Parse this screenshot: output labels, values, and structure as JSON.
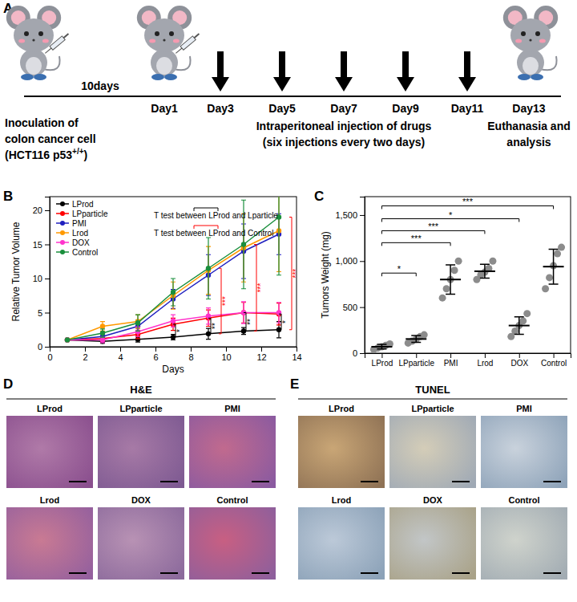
{
  "panel_labels": [
    "A",
    "B",
    "C",
    "D",
    "E"
  ],
  "timeline": {
    "start_label": [
      "Inoculation of",
      "colon cancer cell"
    ],
    "start_sub": {
      "text": "(HCT116 p53",
      "sup": "+/+",
      "tail": ")"
    },
    "interval_label": "10days",
    "days": [
      "Day1",
      "Day3",
      "Day5",
      "Day7",
      "Day9",
      "Day11",
      "Day13"
    ],
    "injection_label": [
      "Intraperitoneal injection of drugs",
      "(six injections every two days)"
    ],
    "end_label": [
      "Euthanasia and",
      "analysis"
    ]
  },
  "chart_data": [
    {
      "type": "line",
      "x": [
        1,
        3,
        5,
        7,
        9,
        11,
        13
      ],
      "xlim": [
        0,
        14
      ],
      "xticks": [
        0,
        2,
        4,
        6,
        8,
        10,
        12,
        14
      ],
      "ylim": [
        0,
        22
      ],
      "yticks": [
        0,
        5,
        10,
        15,
        20
      ],
      "x_label": "Days",
      "y_label": "Relative Tumor Volume",
      "legend": "upper left",
      "marker": "circle",
      "series": [
        {
          "name": "LProd",
          "color": "#000000",
          "values": [
            1,
            0.8,
            1.1,
            1.4,
            1.9,
            2.3,
            2.5
          ],
          "errors": [
            0.1,
            0.3,
            0.4,
            0.4,
            0.8,
            0.5,
            1.2
          ]
        },
        {
          "name": "LPparticle",
          "color": "#ff0000",
          "values": [
            1,
            1.2,
            1.8,
            3.3,
            4.2,
            5.0,
            4.8
          ],
          "errors": [
            0.1,
            0.4,
            0.6,
            0.9,
            1.2,
            1.5,
            1.6
          ]
        },
        {
          "name": "PMI",
          "color": "#1f1fbf",
          "values": [
            1,
            1.5,
            3.0,
            7.0,
            10.5,
            14.0,
            16.5
          ],
          "errors": [
            0.1,
            0.5,
            0.9,
            1.4,
            3.0,
            4.0,
            3.0
          ]
        },
        {
          "name": "Lrod",
          "color": "#ff9900",
          "values": [
            1,
            3.0,
            3.7,
            7.5,
            11.2,
            14.5,
            17.0
          ],
          "errors": [
            0.1,
            0.7,
            1.0,
            2.0,
            3.5,
            5.0,
            6.0
          ]
        },
        {
          "name": "DOX",
          "color": "#ff33cc",
          "values": [
            1,
            1.0,
            2.2,
            3.8,
            4.5,
            5.0,
            5.0
          ],
          "errors": [
            0.1,
            0.4,
            0.7,
            0.9,
            1.2,
            1.6,
            1.5
          ]
        },
        {
          "name": "Control",
          "color": "#1a8f3c",
          "values": [
            1,
            2.0,
            3.5,
            8.0,
            11.5,
            15.0,
            19.0
          ],
          "errors": [
            0.1,
            0.6,
            1.2,
            2.0,
            4.5,
            6.5,
            8.5
          ]
        }
      ],
      "annotations": [
        {
          "text": "T test between LProd and Lparticle",
          "color": "#000000"
        },
        {
          "text": "T test between LProd and Control",
          "color": "#ff0000"
        }
      ],
      "significance": [
        {
          "x": 7,
          "from": 1.4,
          "to": 3.3,
          "label": "*",
          "color": "#000000"
        },
        {
          "x": 9,
          "from": 1.9,
          "to": 4.2,
          "label": "**",
          "color": "#000000"
        },
        {
          "x": 9,
          "from": 1.9,
          "to": 11.5,
          "label": "***",
          "color": "#ff0000"
        },
        {
          "x": 11,
          "from": 2.3,
          "to": 5.0,
          "label": "**",
          "color": "#000000"
        },
        {
          "x": 11,
          "from": 2.3,
          "to": 15.0,
          "label": "***",
          "color": "#ff0000"
        },
        {
          "x": 13,
          "from": 2.5,
          "to": 4.8,
          "label": "*",
          "color": "#000000"
        },
        {
          "x": 13,
          "from": 2.5,
          "to": 19.0,
          "label": "***",
          "color": "#ff0000"
        }
      ]
    },
    {
      "type": "dot",
      "categories": [
        "LProd",
        "LPparticle",
        "PMI",
        "Lrod",
        "DOX",
        "Control"
      ],
      "points": [
        [
          40,
          55,
          70,
          85,
          100
        ],
        [
          110,
          130,
          150,
          180,
          200
        ],
        [
          600,
          700,
          800,
          900,
          1000
        ],
        [
          800,
          850,
          880,
          920,
          1000
        ],
        [
          180,
          240,
          300,
          350,
          430
        ],
        [
          700,
          820,
          950,
          1080,
          1150
        ]
      ],
      "mean": [
        70,
        154,
        800,
        890,
        300,
        940
      ],
      "sd": [
        25,
        37,
        160,
        75,
        95,
        190
      ],
      "color": "#8c8c8c",
      "ylim": [
        0,
        1700
      ],
      "yticks": [
        0,
        500,
        {
          "value": 1000,
          "label": "1,000"
        },
        {
          "value": 1500,
          "label": "1,500"
        }
      ],
      "y_label": "Tumors Weight (mg)",
      "significance": [
        {
          "from": "LProd",
          "to": "Control",
          "y": 1600,
          "label": "***"
        },
        {
          "from": "LProd",
          "to": "DOX",
          "y": 1460,
          "label": "*"
        },
        {
          "from": "LProd",
          "to": "Lrod",
          "y": 1330,
          "label": "***"
        },
        {
          "from": "LProd",
          "to": "PMI",
          "y": 1200,
          "label": "***"
        },
        {
          "from": "LProd",
          "to": "LPparticle",
          "y": 870,
          "label": "*"
        }
      ]
    }
  ],
  "histology": [
    {
      "title": "H&E",
      "images": [
        "LProd",
        "LPparticle",
        "PMI",
        "Lrod",
        "DOX",
        "Control"
      ]
    },
    {
      "title": "TUNEL",
      "images": [
        "LProd",
        "LPparticle",
        "PMI",
        "Lrod",
        "DOX",
        "Control"
      ]
    }
  ]
}
